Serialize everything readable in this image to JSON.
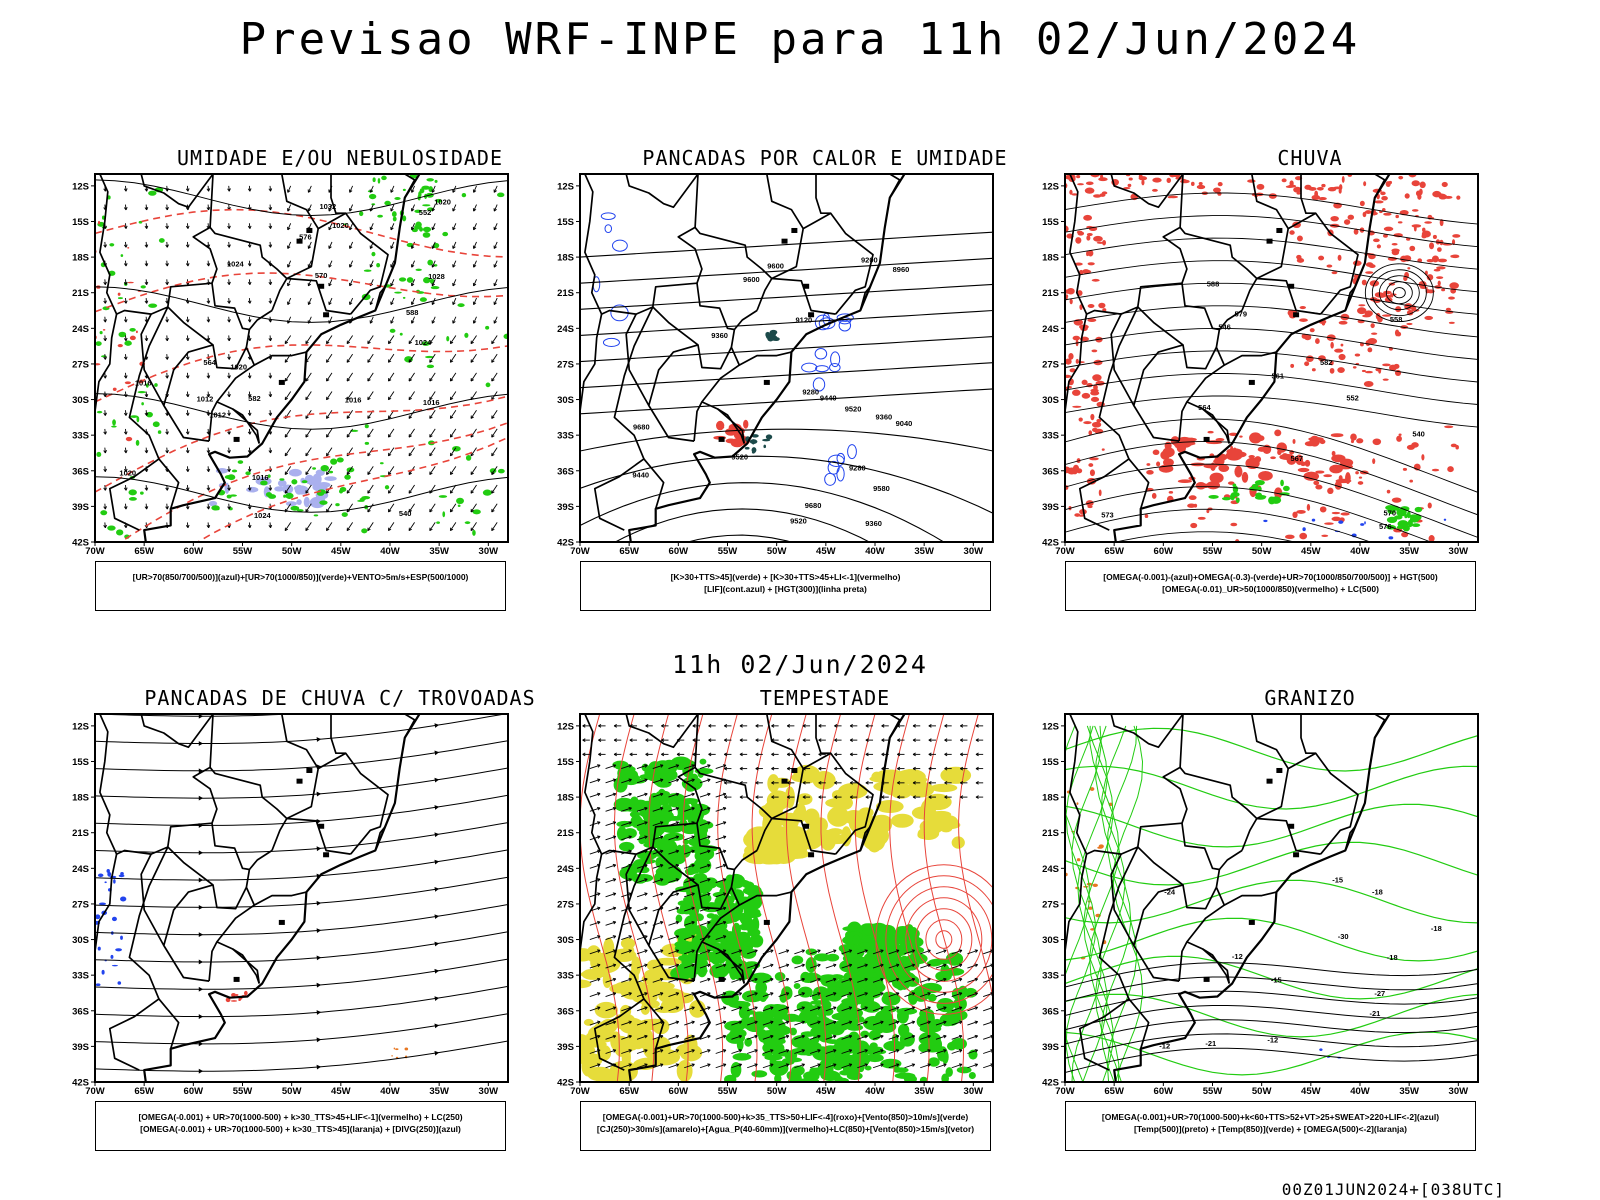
{
  "main_title": "Previsao WRF-INPE  para 11h 02/Jun/2024",
  "mid_title": "11h 02/Jun/2024",
  "footer": "00Z01JUN2024+[038UTC]",
  "lat_labels": [
    "12S",
    "15S",
    "18S",
    "21S",
    "24S",
    "27S",
    "30S",
    "33S",
    "36S",
    "39S",
    "42S"
  ],
  "lon_labels": [
    "70W",
    "65W",
    "60W",
    "55W",
    "50W",
    "45W",
    "40W",
    "35W",
    "30W"
  ],
  "panels": [
    {
      "title": "UMIDADE E/OU NEBULOSIDADE",
      "legend": [
        "[UR>70(850/700/500)](azul)+[UR>70(1000/850)](verde)+VENTO>5m/s+ESP(500/1000)"
      ],
      "contour_labels": [
        "1016",
        "1016",
        "1020",
        "1024",
        "1024",
        "1020",
        "1012",
        "1016",
        "1020",
        "1028",
        "1032",
        "1016",
        "1012",
        "1020",
        "1024",
        "540",
        "552",
        "564",
        "576",
        "570",
        "582",
        "588"
      ]
    },
    {
      "title": "PANCADAS POR CALOR E UMIDADE",
      "legend": [
        "[K>30+TTS>45](verde) + [K>30+TTS>45+LI<-1](vermelho)",
        "[LIF](cont.azul) + [HGT(300)](linha preta)"
      ],
      "contour_labels": [
        "9680",
        "9580",
        "9600",
        "9600",
        "9520",
        "9520",
        "9520",
        "9440",
        "9440",
        "9360",
        "9360",
        "9280",
        "9200",
        "9120",
        "9040",
        "8960",
        "9280",
        "9680",
        "9360"
      ]
    },
    {
      "title": "CHUVA",
      "legend": [
        "[OMEGA(-0.001)-(azul)+OMEGA(-0.3)-(verde)+UR>70(1000/850/700/500)] + HGT(500)",
        "[OMEGA(-0.01)_UR>50(1000/850)(vermelho) + LC(500)"
      ],
      "contour_labels": [
        "588",
        "582",
        "576",
        "570",
        "564",
        "558",
        "552",
        "546",
        "540",
        "579",
        "573",
        "567",
        "561"
      ]
    },
    {
      "title": "PANCADAS DE CHUVA C/ TROVOADAS",
      "legend": [
        "[OMEGA(-0.001) + UR>70(1000-500) + k>30_TTS>45+LIF<-1](vermelho) + LC(250)",
        "[OMEGA(-0.001) + UR>70(1000-500) + k>30_TTS>45](laranja) + [DIVG(250)](azul)"
      ],
      "contour_labels": []
    },
    {
      "title": "TEMPESTADE",
      "legend": [
        "[OMEGA(-0.001)+UR>70(1000-500)+k>35_TTS>50+LIF<-4](roxo)+[Vento(850)>10m/s](verde)",
        "[CJ(250)>30m/s](amarelo)+[Agua_P(40-60mm)](vermelho)+LC(850)+[Vento(850)>15m/s](vetor)"
      ],
      "contour_labels": []
    },
    {
      "title": "GRANIZO",
      "legend": [
        "[OMEGA(-0.001)+UR>70(1000-500)+k<60+TTS>52+VT>25+SWEAT>220+LIF<-2](azul)",
        "[Temp(500)](preto) + [Temp(850)](verde) + [OMEGA(500)<-2](laranja)"
      ],
      "contour_labels": [
        "-12",
        "-12",
        "-15",
        "-18",
        "-21",
        "-24",
        "-27",
        "-30",
        "-15",
        "-18",
        "-21",
        "-12",
        "-18"
      ]
    }
  ],
  "colors": {
    "red": "#e8443a",
    "green": "#22cc11",
    "blue": "#2244ee",
    "yellow": "#e6dc3a",
    "lavender": "#aab0ee",
    "teal": "#1c4a4a",
    "orange": "#e87722",
    "black": "#000000"
  }
}
